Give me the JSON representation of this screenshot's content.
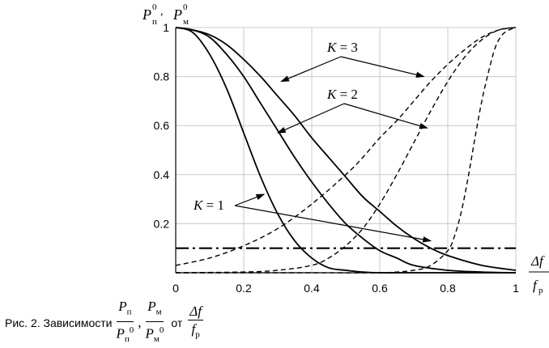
{
  "chart_data": {
    "type": "line",
    "xlim": [
      0,
      1
    ],
    "ylim": [
      0,
      1
    ],
    "x_ticks": [
      "0",
      "0.2",
      "0.4",
      "0.6",
      "0.8",
      "1"
    ],
    "y_ticks": [
      "0.2",
      "0.4",
      "0.6",
      "0.8",
      "1"
    ],
    "y_label": {
      "a": "P",
      "a_sub": "п",
      "a_sup": "0",
      "sep": ",",
      "b": "P",
      "b_sub": "м",
      "b_sup": "0"
    },
    "x_label": {
      "num": "Δf",
      "den": "f",
      "den_sub": "р"
    },
    "grid": true,
    "series": [
      {
        "style": "solid",
        "group": "K = 1",
        "x": [
          0,
          0.05,
          0.1,
          0.15,
          0.2,
          0.25,
          0.3,
          0.35,
          0.4,
          0.45,
          0.5,
          0.55,
          0.6,
          0.7,
          0.8,
          1.0
        ],
        "y": [
          1.0,
          0.98,
          0.89,
          0.75,
          0.57,
          0.39,
          0.24,
          0.13,
          0.06,
          0.02,
          0.01,
          0.003,
          0.0,
          0.0,
          0.0,
          0.0
        ]
      },
      {
        "style": "solid",
        "group": "K = 2",
        "x": [
          0,
          0.05,
          0.1,
          0.15,
          0.2,
          0.25,
          0.3,
          0.35,
          0.4,
          0.45,
          0.5,
          0.55,
          0.6,
          0.65,
          0.7,
          0.8,
          0.9,
          1.0
        ],
        "y": [
          1.0,
          0.99,
          0.96,
          0.89,
          0.8,
          0.69,
          0.58,
          0.47,
          0.37,
          0.28,
          0.2,
          0.14,
          0.09,
          0.06,
          0.03,
          0.01,
          0.003,
          0.0
        ]
      },
      {
        "style": "solid",
        "group": "K = 3",
        "x": [
          0,
          0.05,
          0.1,
          0.15,
          0.2,
          0.25,
          0.3,
          0.35,
          0.4,
          0.45,
          0.5,
          0.55,
          0.6,
          0.65,
          0.7,
          0.75,
          0.8,
          0.9,
          1.0
        ],
        "y": [
          1.0,
          0.99,
          0.97,
          0.93,
          0.87,
          0.8,
          0.72,
          0.64,
          0.55,
          0.47,
          0.39,
          0.31,
          0.25,
          0.19,
          0.14,
          0.1,
          0.07,
          0.03,
          0.01
        ]
      },
      {
        "style": "dashed",
        "group": "K = 1",
        "x": [
          0,
          0.4,
          0.6,
          0.7,
          0.75,
          0.8,
          0.82,
          0.84,
          0.86,
          0.88,
          0.9,
          0.92,
          0.94,
          0.96,
          0.98,
          1.0
        ],
        "y": [
          0.0,
          0.0,
          0.0,
          0.01,
          0.03,
          0.09,
          0.15,
          0.25,
          0.39,
          0.55,
          0.7,
          0.82,
          0.92,
          0.97,
          0.99,
          1.0
        ]
      },
      {
        "style": "dashed",
        "group": "K = 2",
        "x": [
          0,
          0.2,
          0.3,
          0.4,
          0.45,
          0.5,
          0.55,
          0.6,
          0.65,
          0.7,
          0.75,
          0.8,
          0.85,
          0.9,
          0.95,
          1.0
        ],
        "y": [
          0.0,
          0.003,
          0.01,
          0.03,
          0.06,
          0.11,
          0.18,
          0.28,
          0.4,
          0.53,
          0.66,
          0.78,
          0.88,
          0.95,
          0.99,
          1.0
        ]
      },
      {
        "style": "dashed",
        "group": "K = 3",
        "x": [
          0,
          0.1,
          0.2,
          0.3,
          0.4,
          0.5,
          0.55,
          0.6,
          0.65,
          0.7,
          0.75,
          0.8,
          0.85,
          0.9,
          0.95,
          1.0
        ],
        "y": [
          0.03,
          0.06,
          0.11,
          0.18,
          0.28,
          0.4,
          0.47,
          0.55,
          0.62,
          0.7,
          0.78,
          0.85,
          0.91,
          0.96,
          0.99,
          1.0
        ]
      },
      {
        "style": "dashdot",
        "group": "",
        "x": [
          0,
          1
        ],
        "y": [
          0.1,
          0.1
        ]
      }
    ],
    "annotations": [
      {
        "label": "K = 3",
        "targets": [
          [
            0.31,
            0.78
          ],
          [
            0.73,
            0.8
          ]
        ]
      },
      {
        "label": "K = 2",
        "targets": [
          [
            0.3,
            0.57
          ],
          [
            0.74,
            0.59
          ]
        ]
      },
      {
        "label": "K = 1",
        "targets": [
          [
            0.26,
            0.32
          ],
          [
            0.75,
            0.13
          ]
        ]
      }
    ]
  },
  "caption": {
    "prefix": "Рис. 2. Зависимости",
    "f1_num": "P",
    "f1_num_sub": "п",
    "f1_den": "P",
    "f1_den_sub": "п",
    "f1_den_sup": "0",
    "comma": ",",
    "f2_num": "P",
    "f2_num_sub": "м",
    "f2_den": "P",
    "f2_den_sub": "м",
    "f2_den_sup": "0",
    "word": "от",
    "f3_num": "Δf",
    "f3_den": "f",
    "f3_den_sub": "р"
  }
}
